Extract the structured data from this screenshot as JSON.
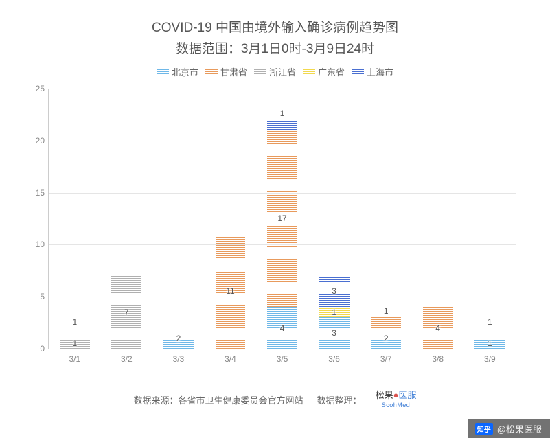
{
  "title": {
    "line1": "COVID-19 中国由境外输入确诊病例趋势图",
    "line2": "数据范围：3月1日0时-3月9日24时",
    "fontsize": 19,
    "color": "#555555"
  },
  "legend": {
    "items": [
      {
        "label": "北京市",
        "color": "#6fb8e8",
        "pattern": "hatch-h"
      },
      {
        "label": "甘肃省",
        "color": "#e89a5c",
        "pattern": "hatch-h"
      },
      {
        "label": "浙江省",
        "color": "#b0b0b0",
        "pattern": "hatch-h"
      },
      {
        "label": "广东省",
        "color": "#f2d94e",
        "pattern": "hatch-h"
      },
      {
        "label": "上海市",
        "color": "#4a6fd1",
        "pattern": "hatch-h"
      }
    ],
    "fontsize": 13
  },
  "chart": {
    "type": "stacked-bar",
    "ylim": [
      0,
      25
    ],
    "ytick_step": 5,
    "yticks": [
      0,
      5,
      10,
      15,
      20,
      25
    ],
    "grid_color": "#e5e5e5",
    "axis_color": "#cccccc",
    "background_color": "#ffffff",
    "bar_width_ratio": 0.58,
    "categories": [
      "3/1",
      "3/2",
      "3/3",
      "3/4",
      "3/5",
      "3/6",
      "3/7",
      "3/8",
      "3/9"
    ],
    "series_order": [
      "北京市",
      "甘肃省",
      "浙江省",
      "广东省",
      "上海市"
    ],
    "series_colors": {
      "北京市": "#6fb8e8",
      "甘肃省": "#e89a5c",
      "浙江省": "#b0b0b0",
      "广东省": "#f2d94e",
      "上海市": "#4a6fd1"
    },
    "data": {
      "3/1": {
        "北京市": 0,
        "甘肃省": 0,
        "浙江省": 1,
        "广东省": 1,
        "上海市": 0
      },
      "3/2": {
        "北京市": 0,
        "甘肃省": 0,
        "浙江省": 7,
        "广东省": 0,
        "上海市": 0
      },
      "3/3": {
        "北京市": 2,
        "甘肃省": 0,
        "浙江省": 0,
        "广东省": 0,
        "上海市": 0
      },
      "3/4": {
        "北京市": 0,
        "甘肃省": 11,
        "浙江省": 0,
        "广东省": 0,
        "上海市": 0
      },
      "3/5": {
        "北京市": 4,
        "甘肃省": 17,
        "浙江省": 0,
        "广东省": 0,
        "上海市": 1
      },
      "3/6": {
        "北京市": 3,
        "甘肃省": 0,
        "浙江省": 0,
        "广东省": 1,
        "上海市": 3
      },
      "3/7": {
        "北京市": 2,
        "甘肃省": 1,
        "浙江省": 0,
        "广东省": 0,
        "上海市": 0
      },
      "3/8": {
        "北京市": 0,
        "甘肃省": 4,
        "浙江省": 0,
        "广东省": 0,
        "上海市": 0
      },
      "3/9": {
        "北京市": 1,
        "甘肃省": 0,
        "浙江省": 0,
        "广东省": 1,
        "上海市": 0
      }
    },
    "label_fontsize": 12,
    "tick_fontsize": 12,
    "tick_color": "#888888"
  },
  "footer": {
    "source_label": "数据来源：各省市卫生健康委员会官方网站",
    "org_label": "数据整理：",
    "brand_cn_1": "松果",
    "brand_cn_2": "医服",
    "brand_en": "ScohMed"
  },
  "watermark": {
    "prefix": "知乎",
    "text": "@松果医服"
  }
}
